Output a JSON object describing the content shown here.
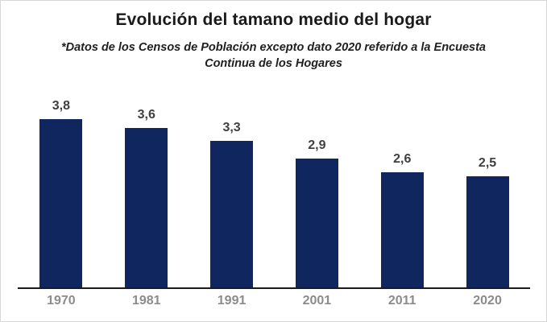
{
  "chart_data": {
    "type": "bar",
    "title": "Evolución del tamano medio del hogar",
    "subtitle": "*Datos de los Censos de Población excepto dato 2020 referido a la Encuesta Continua de los Hogares",
    "categories": [
      "1970",
      "1981",
      "1991",
      "2001",
      "2011",
      "2020"
    ],
    "values": [
      3.8,
      3.6,
      3.3,
      2.9,
      2.6,
      2.5
    ],
    "value_labels": [
      "3,8",
      "3,6",
      "3,3",
      "2,9",
      "2,6",
      "2,5"
    ],
    "xlabel": "",
    "ylabel": "",
    "ylim": [
      0,
      4.5
    ],
    "grid": false,
    "legend": false,
    "colors": {
      "bar": "#10265f",
      "value_label": "#404040",
      "category_label": "#8c8c8c",
      "axis_line": "#1a1a1a",
      "title": "#1a1a1a",
      "subtitle": "#1f1f1f"
    }
  }
}
